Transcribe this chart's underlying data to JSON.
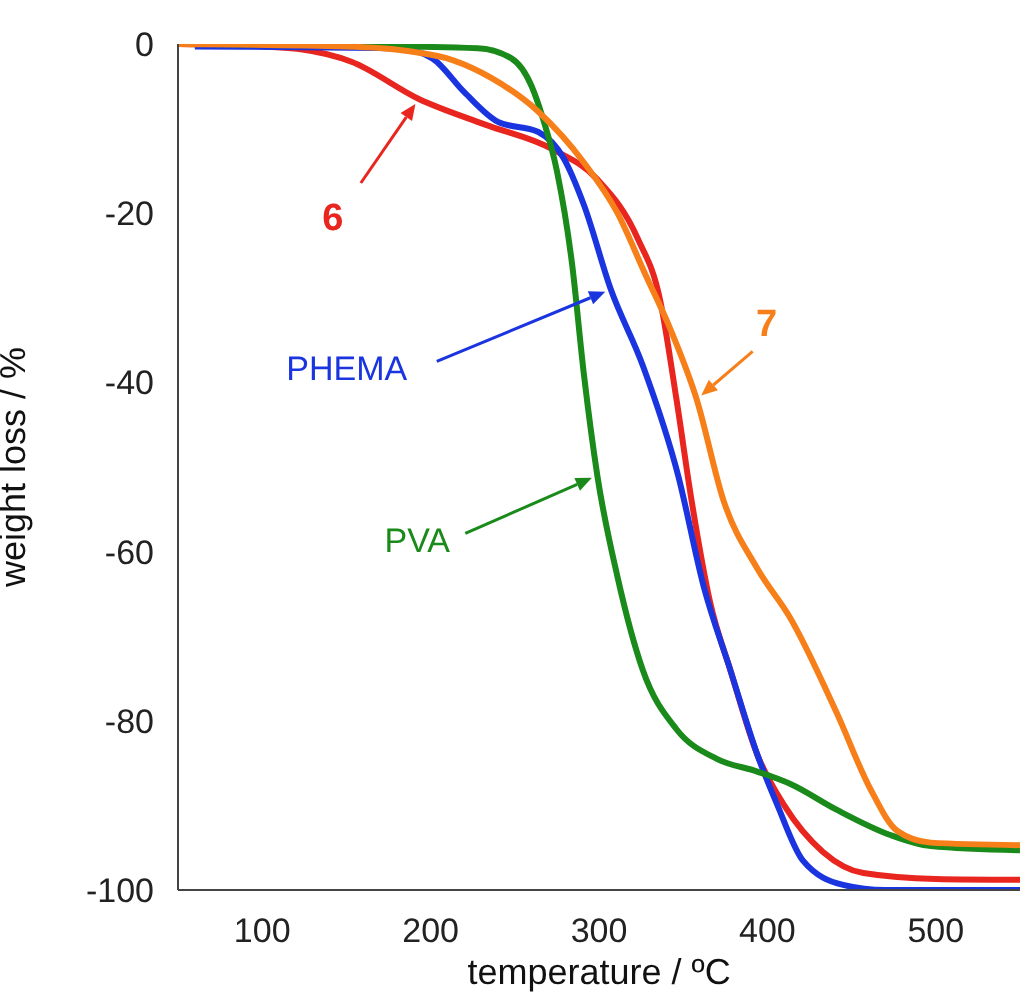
{
  "chart_data": {
    "type": "line",
    "xlabel": "temperature / ºC",
    "ylabel": "weight loss / %",
    "xlim": [
      50,
      550
    ],
    "xticks": [
      100,
      200,
      300,
      400,
      500
    ],
    "ylim": [
      -100,
      0
    ],
    "yticks": [
      0,
      -20,
      -40,
      -60,
      -80,
      -100
    ],
    "grid": false,
    "legend": false,
    "marker": "none",
    "line_style": "solid",
    "series": [
      {
        "name": "6",
        "color": "#e8251e",
        "x": [
          50,
          100,
          122,
          153,
          193,
          232,
          272,
          299,
          323,
          336,
          346,
          355,
          366,
          378,
          394,
          410,
          433,
          457,
          500,
          550
        ],
        "values": [
          0,
          -0.3,
          -0.6,
          -2.1,
          -6.5,
          -9.5,
          -12.4,
          -16,
          -23,
          -30,
          -42,
          -54,
          -66,
          -74,
          -84,
          -90,
          -95.5,
          -98,
          -98.7,
          -98.8
        ]
      },
      {
        "name": "PHEMA",
        "color": "#1a35e0",
        "x": [
          60,
          181,
          201,
          220,
          240,
          264,
          279,
          291,
          307,
          326,
          347,
          362,
          378,
          394,
          406,
          421,
          445,
          470,
          550
        ],
        "values": [
          -0.3,
          -0.5,
          -1.7,
          -5.7,
          -9.2,
          -10.4,
          -13.5,
          -19,
          -29,
          -38,
          -51,
          -64,
          -74,
          -84,
          -90,
          -96.5,
          -99.4,
          -100,
          -100
        ]
      },
      {
        "name": "PVA",
        "color": "#1a8a1a",
        "x": [
          70,
          228,
          248,
          260,
          267,
          275,
          284,
          291,
          299,
          311,
          326,
          346,
          370,
          394,
          414,
          441,
          473,
          497,
          550
        ],
        "values": [
          0,
          -0.5,
          -1.7,
          -5,
          -9,
          -15,
          -26,
          -39,
          -51,
          -63,
          -74,
          -81,
          -84.5,
          -86,
          -87.5,
          -90.5,
          -93.5,
          -94.8,
          -95.3
        ]
      },
      {
        "name": "7",
        "color": "#f77f1a",
        "x": [
          50,
          150,
          185,
          213,
          236,
          264,
          291,
          311,
          327,
          343,
          358,
          374,
          394,
          414,
          441,
          461,
          477,
          497,
          550
        ],
        "values": [
          0,
          -0.3,
          -0.8,
          -1.9,
          -4,
          -8,
          -14,
          -20,
          -27,
          -34,
          -42,
          -54,
          -62,
          -68,
          -79,
          -88,
          -93,
          -94.4,
          -94.7
        ]
      }
    ]
  }
}
